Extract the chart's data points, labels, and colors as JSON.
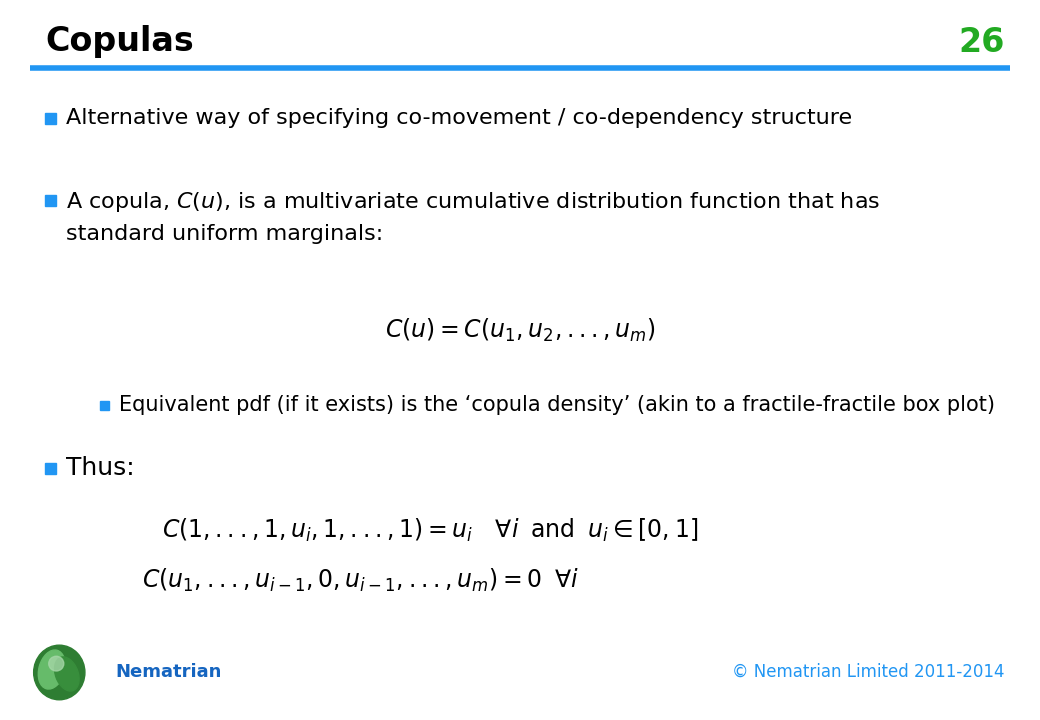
{
  "title": "Copulas",
  "slide_number": "26",
  "title_color": "#000000",
  "slide_number_color": "#22AA22",
  "title_fontsize": 24,
  "header_line_color": "#2196F3",
  "background_color": "#FFFFFF",
  "bullet_color": "#2196F3",
  "bullet1": "Alternative way of specifying co-movement / co-dependency structure",
  "bullet2_text": "A copula, $C$($u$), is a multivariate cumulative distribution function that has\nstandard uniform marginals:",
  "formula1": "$C\\left(u\\right) = C\\left(u_1, u_2, ..., u_m\\right)$",
  "sub_bullet": "Equivalent pdf (if it exists) is the ‘copula density’ (akin to a fractile-fractile box plot)",
  "bullet3": "Thus:",
  "formula2": "$C\\left(1,...,1,u_i,1,...,1\\right) = u_i \\quad \\forall i \\;\\; \\mathrm{and} \\;\\; u_i \\in \\left[0,1\\right]$",
  "formula3": "$C\\left(u_1,...,u_{i-1},0,u_{i-1},...,u_m\\right) = 0 \\;\\; \\forall i$",
  "footer_left": "Nematrian",
  "footer_left_color": "#1565C0",
  "footer_right": "© Nematrian Limited 2011-2014",
  "footer_right_color": "#2196F3",
  "text_color": "#000000",
  "text_fontsize": 16,
  "formula_fontsize": 17
}
